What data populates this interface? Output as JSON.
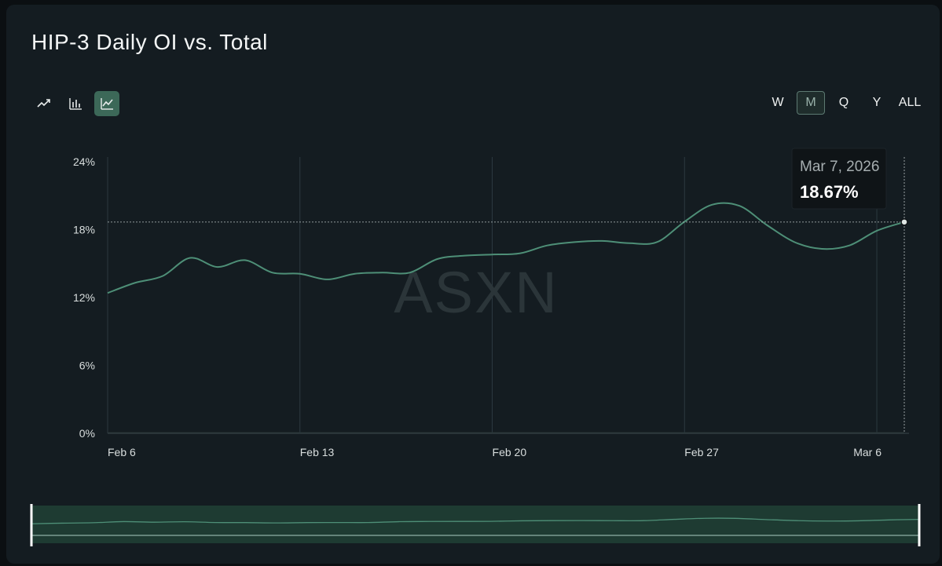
{
  "title": "HIP-3 Daily OI vs. Total",
  "chart_types": [
    {
      "name": "trend",
      "icon": "trend-arrow-icon",
      "active": false
    },
    {
      "name": "bar",
      "icon": "bar-chart-icon",
      "active": false
    },
    {
      "name": "line",
      "icon": "line-chart-icon",
      "active": true
    }
  ],
  "ranges": [
    {
      "label": "W",
      "active": false
    },
    {
      "label": "M",
      "active": true
    },
    {
      "label": "Q",
      "active": false
    },
    {
      "label": "Y",
      "active": false
    },
    {
      "label": "ALL",
      "active": false
    }
  ],
  "watermark": "ASXN",
  "tooltip": {
    "date": "Mar 7, 2026",
    "value": "18.67%"
  },
  "colors": {
    "line": "#4e8f77",
    "grid": "#2c3940",
    "text": "#d9dede",
    "tooltip_bg": "#0f1417"
  },
  "chart_data": {
    "type": "line",
    "title": "HIP-3 Daily OI vs. Total",
    "xlabel": "",
    "ylabel": "",
    "x_ticks": [
      "Feb 6",
      "Feb 13",
      "Feb 20",
      "Feb 27",
      "Mar 6"
    ],
    "y_ticks": [
      "0%",
      "6%",
      "12%",
      "18%",
      "24%"
    ],
    "ylim": [
      0,
      24
    ],
    "grid": "vertical",
    "series": [
      {
        "x": [
          "Feb 6",
          "Feb 7",
          "Feb 8",
          "Feb 9",
          "Feb 10",
          "Feb 11",
          "Feb 12",
          "Feb 13",
          "Feb 14",
          "Feb 15",
          "Feb 16",
          "Feb 17",
          "Feb 18",
          "Feb 19",
          "Feb 20",
          "Feb 21",
          "Feb 22",
          "Feb 23",
          "Feb 24",
          "Feb 25",
          "Feb 26",
          "Feb 27",
          "Feb 28",
          "Mar 1",
          "Mar 2",
          "Mar 3",
          "Mar 4",
          "Mar 5",
          "Mar 6",
          "Mar 7"
        ],
        "values": [
          12.4,
          13.3,
          13.9,
          15.5,
          14.7,
          15.3,
          14.2,
          14.1,
          13.6,
          14.1,
          14.2,
          14.2,
          15.4,
          15.7,
          15.8,
          15.9,
          16.6,
          16.9,
          17.0,
          16.8,
          16.9,
          18.7,
          20.2,
          20.1,
          18.4,
          16.9,
          16.3,
          16.6,
          17.9,
          18.67
        ]
      }
    ],
    "highlight": {
      "x": "Mar 7",
      "value": 18.67
    }
  }
}
